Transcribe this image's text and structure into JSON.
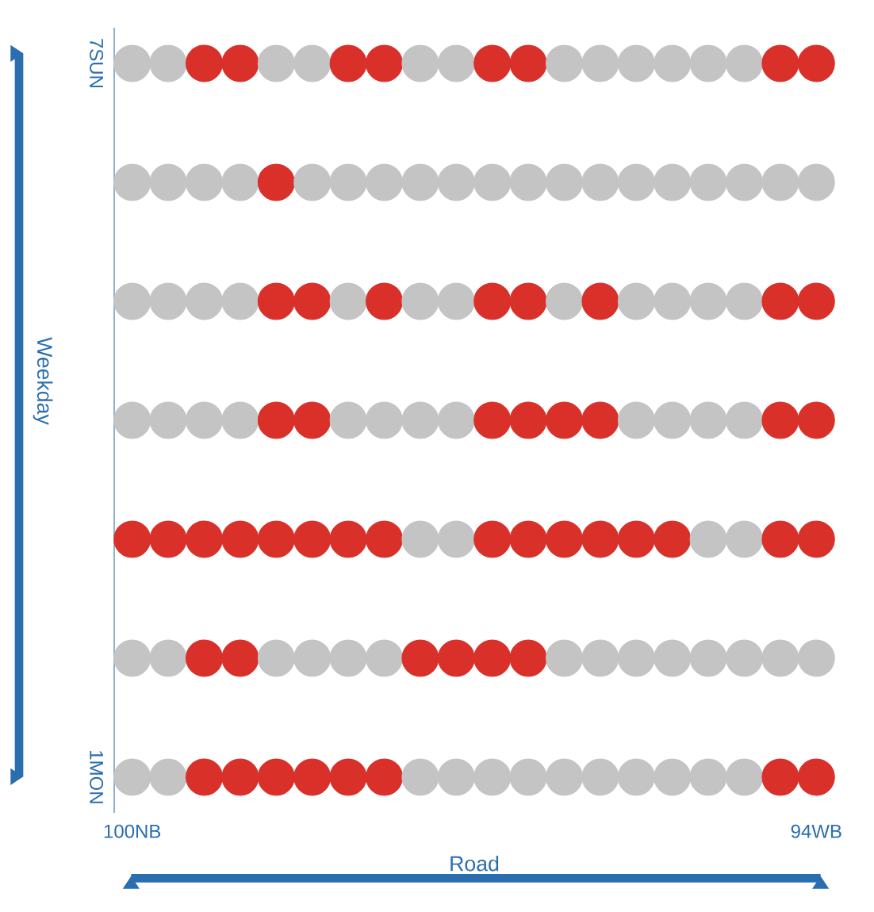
{
  "chart_data": {
    "type": "scatter",
    "xlabel": "Road",
    "ylabel": "Weekday",
    "marker": "circle",
    "categories": [
      "100NB",
      null,
      null,
      null,
      null,
      null,
      null,
      null,
      null,
      null,
      null,
      null,
      null,
      null,
      null,
      null,
      null,
      null,
      null,
      "94WB"
    ],
    "ylim": [
      0.7,
      7.3
    ],
    "yticks": [
      {
        "value": 1,
        "label": "1MON"
      },
      {
        "value": 7,
        "label": "7SUN"
      }
    ],
    "series": [
      {
        "values": [
          1,
          1,
          1,
          1,
          1,
          1,
          1,
          1,
          1,
          1,
          1,
          1,
          1,
          1,
          1,
          1,
          1,
          1,
          1,
          1
        ],
        "colors": [
          "#c4c4c4",
          "#c4c4c4",
          "#d9302a",
          "#d9302a",
          "#d9302a",
          "#d9302a",
          "#d9302a",
          "#d9302a",
          "#c4c4c4",
          "#c4c4c4",
          "#c4c4c4",
          "#c4c4c4",
          "#c4c4c4",
          "#c4c4c4",
          "#c4c4c4",
          "#c4c4c4",
          "#c4c4c4",
          "#c4c4c4",
          "#d9302a",
          "#d9302a"
        ]
      },
      {
        "values": [
          2,
          2,
          2,
          2,
          2,
          2,
          2,
          2,
          2,
          2,
          2,
          2,
          2,
          2,
          2,
          2,
          2,
          2,
          2,
          2
        ],
        "colors": [
          "#c4c4c4",
          "#c4c4c4",
          "#d9302a",
          "#d9302a",
          "#c4c4c4",
          "#c4c4c4",
          "#c4c4c4",
          "#c4c4c4",
          "#d9302a",
          "#d9302a",
          "#d9302a",
          "#d9302a",
          "#c4c4c4",
          "#c4c4c4",
          "#c4c4c4",
          "#c4c4c4",
          "#c4c4c4",
          "#c4c4c4",
          "#c4c4c4",
          "#c4c4c4"
        ]
      },
      {
        "values": [
          3,
          3,
          3,
          3,
          3,
          3,
          3,
          3,
          3,
          3,
          3,
          3,
          3,
          3,
          3,
          3,
          3,
          3,
          3,
          3
        ],
        "colors": [
          "#d9302a",
          "#d9302a",
          "#d9302a",
          "#d9302a",
          "#d9302a",
          "#d9302a",
          "#d9302a",
          "#d9302a",
          "#c4c4c4",
          "#c4c4c4",
          "#d9302a",
          "#d9302a",
          "#d9302a",
          "#d9302a",
          "#d9302a",
          "#d9302a",
          "#c4c4c4",
          "#c4c4c4",
          "#d9302a",
          "#d9302a"
        ]
      },
      {
        "values": [
          4,
          4,
          4,
          4,
          4,
          4,
          4,
          4,
          4,
          4,
          4,
          4,
          4,
          4,
          4,
          4,
          4,
          4,
          4,
          4
        ],
        "colors": [
          "#c4c4c4",
          "#c4c4c4",
          "#c4c4c4",
          "#c4c4c4",
          "#d9302a",
          "#d9302a",
          "#c4c4c4",
          "#c4c4c4",
          "#c4c4c4",
          "#c4c4c4",
          "#d9302a",
          "#d9302a",
          "#d9302a",
          "#d9302a",
          "#c4c4c4",
          "#c4c4c4",
          "#c4c4c4",
          "#c4c4c4",
          "#d9302a",
          "#d9302a"
        ]
      },
      {
        "values": [
          5,
          5,
          5,
          5,
          5,
          5,
          5,
          5,
          5,
          5,
          5,
          5,
          5,
          5,
          5,
          5,
          5,
          5,
          5,
          5
        ],
        "colors": [
          "#c4c4c4",
          "#c4c4c4",
          "#c4c4c4",
          "#c4c4c4",
          "#d9302a",
          "#d9302a",
          "#c4c4c4",
          "#d9302a",
          "#c4c4c4",
          "#c4c4c4",
          "#d9302a",
          "#d9302a",
          "#c4c4c4",
          "#d9302a",
          "#c4c4c4",
          "#c4c4c4",
          "#c4c4c4",
          "#c4c4c4",
          "#d9302a",
          "#d9302a"
        ]
      },
      {
        "values": [
          6,
          6,
          6,
          6,
          6,
          6,
          6,
          6,
          6,
          6,
          6,
          6,
          6,
          6,
          6,
          6,
          6,
          6,
          6,
          6
        ],
        "colors": [
          "#c4c4c4",
          "#c4c4c4",
          "#c4c4c4",
          "#c4c4c4",
          "#d9302a",
          "#c4c4c4",
          "#c4c4c4",
          "#c4c4c4",
          "#c4c4c4",
          "#c4c4c4",
          "#c4c4c4",
          "#c4c4c4",
          "#c4c4c4",
          "#c4c4c4",
          "#c4c4c4",
          "#c4c4c4",
          "#c4c4c4",
          "#c4c4c4",
          "#c4c4c4",
          "#c4c4c4"
        ]
      },
      {
        "values": [
          7,
          7,
          7,
          7,
          7,
          7,
          7,
          7,
          7,
          7,
          7,
          7,
          7,
          7,
          7,
          7,
          7,
          7,
          7,
          7
        ],
        "colors": [
          "#c4c4c4",
          "#c4c4c4",
          "#d9302a",
          "#d9302a",
          "#c4c4c4",
          "#c4c4c4",
          "#d9302a",
          "#d9302a",
          "#c4c4c4",
          "#c4c4c4",
          "#d9302a",
          "#d9302a",
          "#c4c4c4",
          "#c4c4c4",
          "#c4c4c4",
          "#c4c4c4",
          "#c4c4c4",
          "#c4c4c4",
          "#d9302a",
          "#d9302a"
        ]
      }
    ]
  }
}
